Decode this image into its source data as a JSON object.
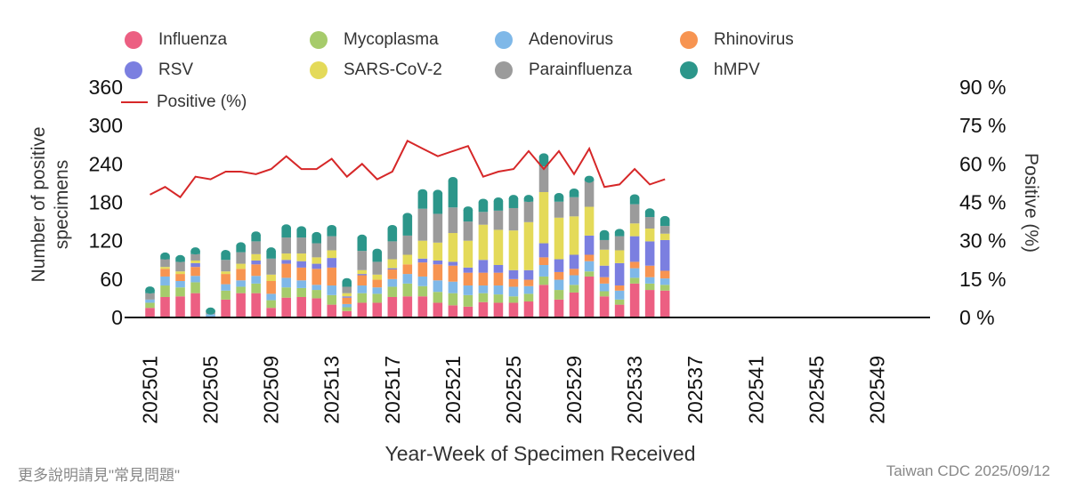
{
  "footer": {
    "note": "更多說明請見\"常見問題\"",
    "source": "Taiwan CDC 2025/09/12"
  },
  "chart_data": {
    "type": "bar",
    "stacked": true,
    "xlabel": "Year-Week of Specimen Received",
    "ylabel": "Number of positive specimens",
    "y2label": "Positive (%)",
    "ylim": [
      0,
      360
    ],
    "y2lim": [
      0,
      90
    ],
    "yticks": [
      "0",
      "60",
      "120",
      "180",
      "240",
      "300",
      "360"
    ],
    "y2ticks": [
      "0 %",
      "15 %",
      "30 %",
      "45 %",
      "60 %",
      "75 %",
      "90 %"
    ],
    "x_tick_labels": [
      "202501",
      "202505",
      "202509",
      "202513",
      "202517",
      "202521",
      "202525",
      "202529",
      "202533",
      "202537",
      "202541",
      "202545",
      "202549"
    ],
    "weeks": [
      "202501",
      "202502",
      "202503",
      "202504",
      "202505",
      "202506",
      "202507",
      "202508",
      "202509",
      "202510",
      "202511",
      "202512",
      "202513",
      "202514",
      "202515",
      "202516",
      "202517",
      "202518",
      "202519",
      "202520",
      "202521",
      "202522",
      "202523",
      "202524",
      "202525",
      "202526",
      "202527",
      "202528",
      "202529",
      "202530",
      "202531",
      "202532",
      "202533",
      "202534",
      "202535",
      "202536",
      "202537",
      "202538",
      "202539",
      "202540",
      "202541",
      "202542",
      "202543",
      "202544",
      "202545",
      "202546",
      "202547",
      "202548",
      "202549",
      "202550",
      "202551",
      "202552"
    ],
    "legend_position": "top",
    "grid": false,
    "series": [
      {
        "name": "Influenza",
        "color": "#ec5f82",
        "values": [
          15,
          32,
          33,
          38,
          0,
          28,
          38,
          38,
          15,
          31,
          32,
          30,
          20,
          10,
          23,
          23,
          32,
          33,
          33,
          23,
          19,
          17,
          24,
          23,
          23,
          25,
          51,
          28,
          39,
          64,
          33,
          20,
          53,
          43,
          42
        ]
      },
      {
        "name": "Mycoplasma",
        "color": "#a6cb6b",
        "values": [
          8,
          18,
          14,
          17,
          0,
          14,
          10,
          15,
          12,
          16,
          14,
          13,
          15,
          6,
          15,
          14,
          16,
          20,
          16,
          17,
          19,
          18,
          14,
          13,
          10,
          12,
          13,
          15,
          12,
          8,
          8,
          8,
          9,
          10,
          9
        ]
      },
      {
        "name": "Adenovirus",
        "color": "#7fb8e8",
        "values": [
          5,
          14,
          10,
          10,
          5,
          10,
          10,
          12,
          10,
          15,
          12,
          8,
          15,
          5,
          12,
          10,
          12,
          15,
          15,
          18,
          18,
          15,
          12,
          14,
          15,
          12,
          18,
          16,
          15,
          16,
          12,
          14,
          15,
          10,
          10
        ]
      },
      {
        "name": "Rhinovirus",
        "color": "#f79451",
        "values": [
          0,
          12,
          11,
          14,
          0,
          16,
          18,
          18,
          20,
          22,
          20,
          25,
          28,
          10,
          16,
          12,
          15,
          15,
          22,
          25,
          25,
          20,
          20,
          20,
          12,
          10,
          12,
          12,
          10,
          10,
          10,
          8,
          10,
          18,
          12
        ]
      },
      {
        "name": "RSV",
        "color": "#7b7fe0",
        "values": [
          0,
          0,
          0,
          6,
          0,
          0,
          0,
          6,
          0,
          6,
          10,
          8,
          15,
          2,
          2,
          0,
          2,
          0,
          6,
          6,
          6,
          8,
          20,
          12,
          14,
          15,
          22,
          20,
          22,
          30,
          18,
          35,
          40,
          38,
          48
        ]
      },
      {
        "name": "SARS-CoV-2",
        "color": "#e4da59",
        "values": [
          0,
          3,
          4,
          4,
          0,
          4,
          8,
          10,
          10,
          10,
          12,
          10,
          12,
          5,
          6,
          8,
          14,
          15,
          28,
          28,
          45,
          42,
          55,
          55,
          62,
          75,
          80,
          65,
          60,
          45,
          25,
          20,
          20,
          20,
          10
        ]
      },
      {
        "name": "Parainfluenza",
        "color": "#9b9b9b",
        "values": [
          10,
          12,
          15,
          10,
          3,
          18,
          18,
          20,
          25,
          25,
          25,
          22,
          22,
          10,
          30,
          20,
          28,
          30,
          50,
          45,
          40,
          30,
          20,
          30,
          35,
          32,
          40,
          25,
          30,
          40,
          15,
          22,
          30,
          18,
          12
        ]
      },
      {
        "name": "hMPV",
        "color": "#2c968a",
        "values": [
          5,
          5,
          5,
          5,
          2,
          10,
          10,
          10,
          12,
          15,
          12,
          12,
          12,
          8,
          20,
          15,
          20,
          30,
          25,
          32,
          42,
          18,
          15,
          15,
          15,
          5,
          15,
          8,
          8,
          3,
          10,
          6,
          10,
          8,
          10
        ]
      }
    ],
    "positive_pct": {
      "name": "Positive (%)",
      "color": "#d62728",
      "values": [
        48,
        51,
        47,
        55,
        54,
        57,
        57,
        56,
        58,
        63,
        58,
        58,
        62,
        55,
        60,
        54,
        57,
        69,
        66,
        63,
        65,
        67,
        55,
        57,
        58,
        65,
        58,
        65,
        56,
        66,
        51,
        52,
        58,
        52,
        54
      ]
    }
  }
}
